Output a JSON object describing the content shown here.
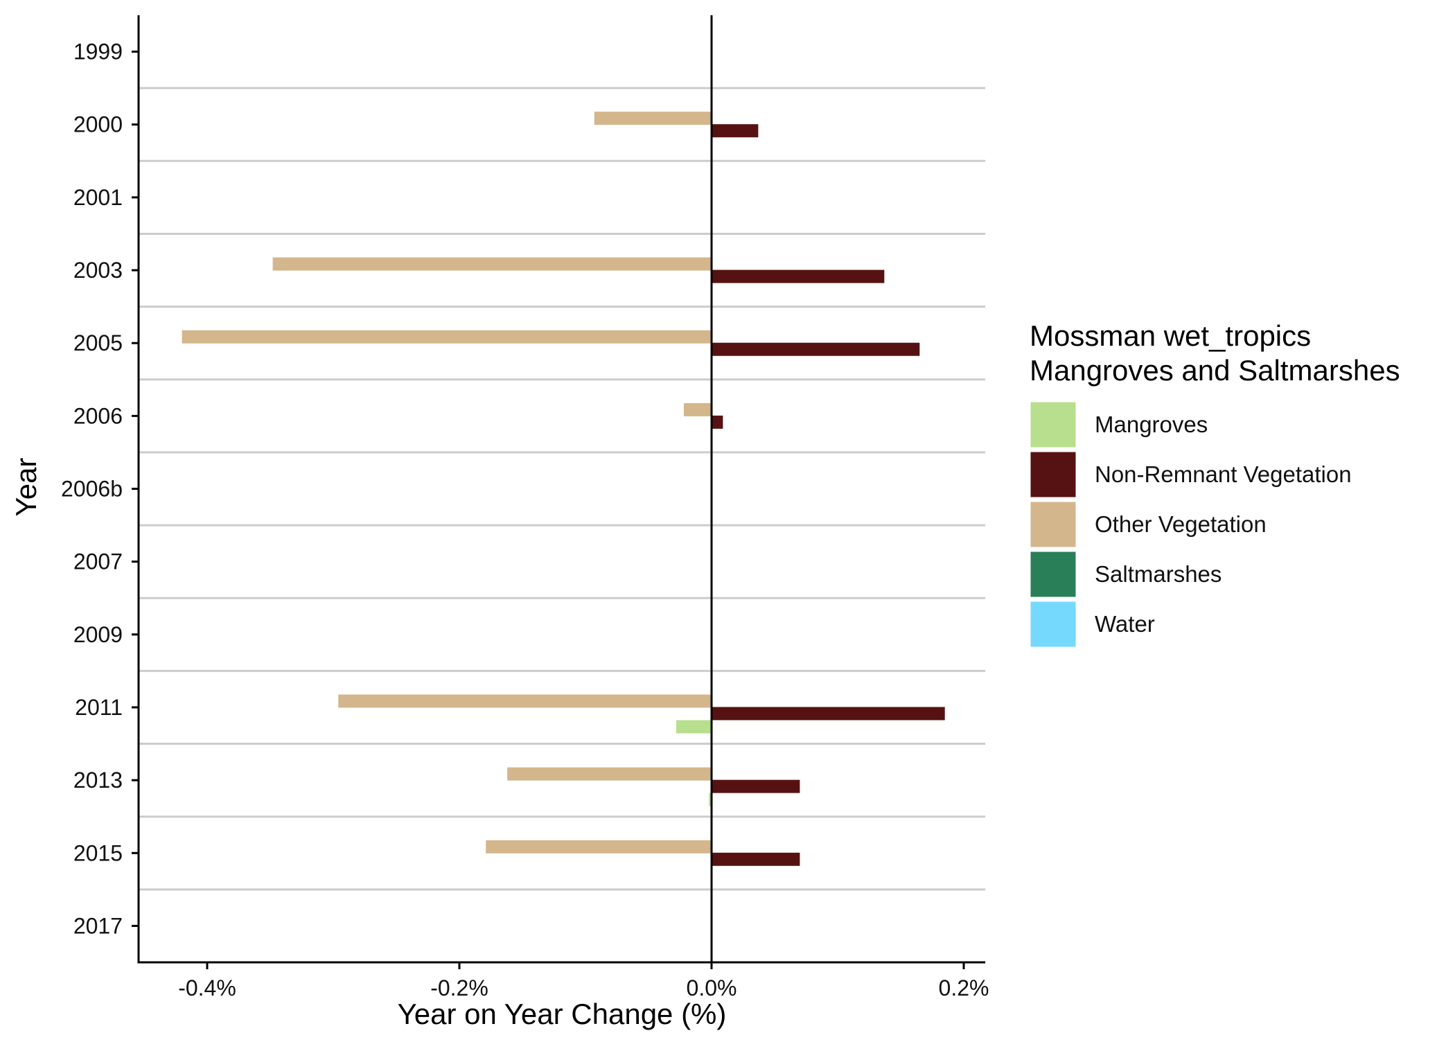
{
  "chart_data": {
    "type": "bar",
    "orientation": "horizontal",
    "categories": [
      "1999",
      "2000",
      "2001",
      "2003",
      "2005",
      "2006",
      "2006b",
      "2007",
      "2009",
      "2011",
      "2013",
      "2015",
      "2017"
    ],
    "xlabel": "Year on Year Change (%)",
    "ylabel": "Year",
    "xlim": [
      -0.45,
      0.215
    ],
    "xticks": [
      -0.4,
      -0.2,
      0.0,
      0.2
    ],
    "xtick_labels": [
      "-0.4%",
      "-0.2%",
      "0.0%",
      "0.2%"
    ],
    "grid": "horizontal separators between years",
    "legend": {
      "position": "right",
      "title_lines": [
        "Mossman wet_tropics",
        "Mangroves and Saltmarshes"
      ]
    },
    "series": [
      {
        "name": "Mangroves",
        "color": "#b8df8d",
        "values": [
          null,
          null,
          null,
          null,
          null,
          null,
          null,
          null,
          null,
          -0.028,
          -0.002,
          null,
          null
        ]
      },
      {
        "name": "Non-Remnant Vegetation",
        "color": "#561212",
        "values": [
          null,
          0.037,
          null,
          0.137,
          0.165,
          0.009,
          null,
          null,
          null,
          0.185,
          0.07,
          0.07,
          null
        ]
      },
      {
        "name": "Other Vegetation",
        "color": "#d4b68c",
        "values": [
          null,
          -0.093,
          null,
          -0.348,
          -0.42,
          -0.022,
          null,
          null,
          null,
          -0.296,
          -0.162,
          -0.179,
          null
        ]
      },
      {
        "name": "Saltmarshes",
        "color": "#297f57",
        "values": [
          null,
          null,
          null,
          null,
          null,
          null,
          null,
          null,
          null,
          null,
          null,
          null,
          null
        ]
      },
      {
        "name": "Water",
        "color": "#75d9fd",
        "values": [
          null,
          null,
          null,
          null,
          null,
          null,
          null,
          null,
          null,
          null,
          null,
          null,
          null
        ]
      }
    ]
  }
}
